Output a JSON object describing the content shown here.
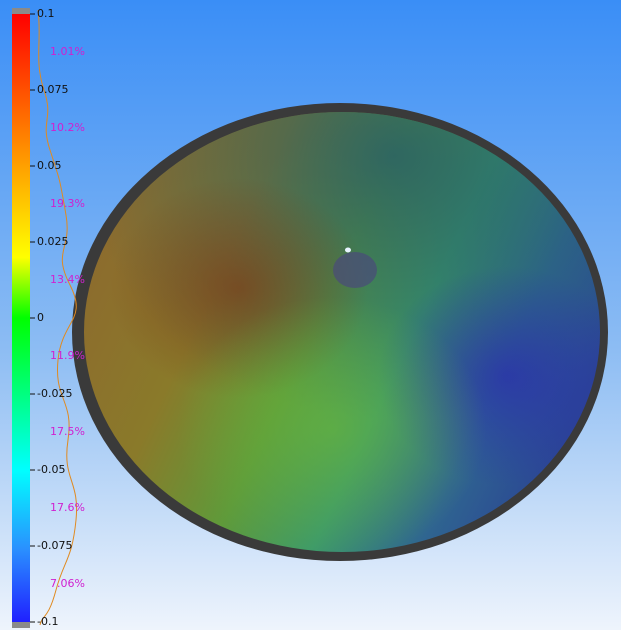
{
  "color_scale": {
    "ticks": [
      0.1,
      0.075,
      0.05,
      0.025,
      0,
      -0.025,
      -0.05,
      -0.075,
      -0.1
    ],
    "bin_labels": [
      "1.01%",
      "10.2%",
      "19.3%",
      "13.4%",
      "11.9%",
      "17.5%",
      "17.6%",
      "7.06%"
    ]
  }
}
